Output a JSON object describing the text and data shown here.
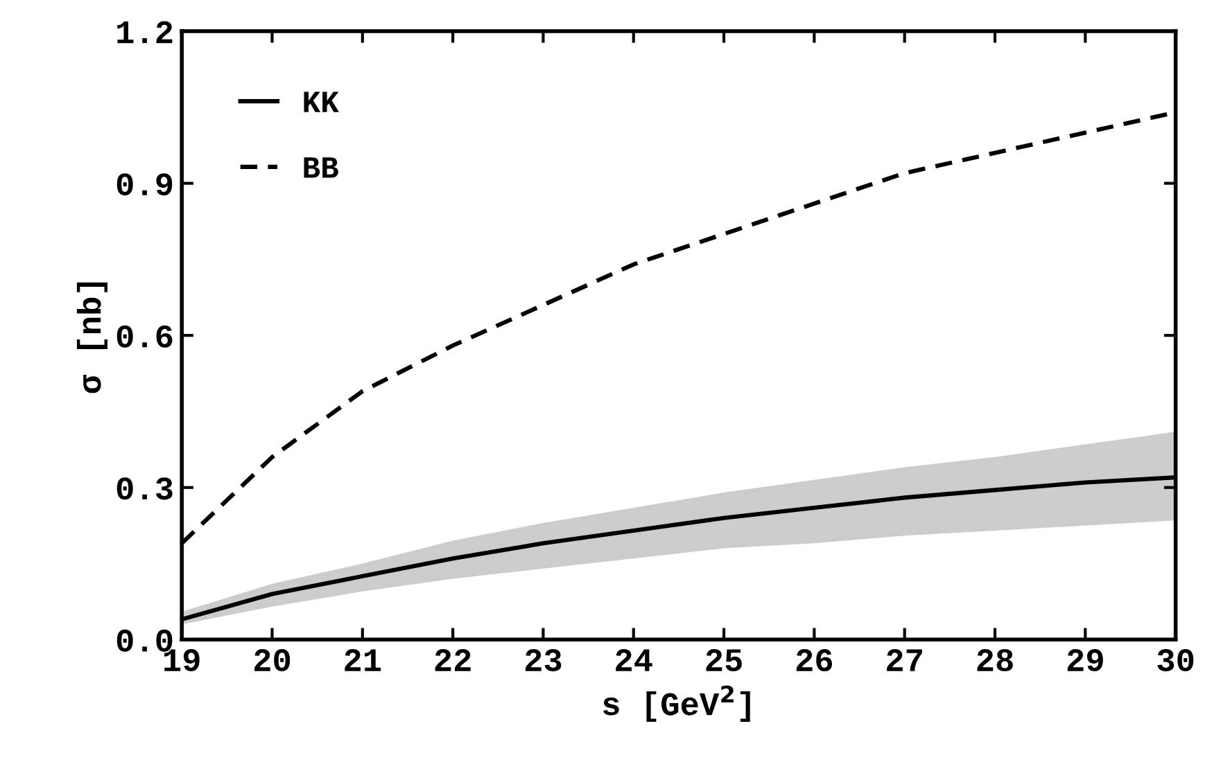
{
  "chart_data": {
    "type": "line",
    "xlabel": "s [GeV$^{2}$]",
    "ylabel": "σ [nb]",
    "x": [
      19,
      20,
      21,
      22,
      23,
      24,
      25,
      26,
      27,
      28,
      29,
      30
    ],
    "series": [
      {
        "name": "KK",
        "color": "#000000",
        "line_style": "solid",
        "values": [
          0.04,
          0.09,
          0.125,
          0.16,
          0.19,
          0.215,
          0.24,
          0.26,
          0.28,
          0.295,
          0.31,
          0.32
        ],
        "lower": [
          0.03,
          0.065,
          0.095,
          0.12,
          0.14,
          0.16,
          0.18,
          0.19,
          0.205,
          0.215,
          0.225,
          0.235
        ],
        "upper": [
          0.055,
          0.11,
          0.15,
          0.195,
          0.23,
          0.26,
          0.29,
          0.315,
          0.34,
          0.36,
          0.385,
          0.41
        ]
      },
      {
        "name": "BB",
        "color": "#000000",
        "line_style": "dashed",
        "values": [
          0.19,
          0.36,
          0.49,
          0.58,
          0.66,
          0.74,
          0.8,
          0.86,
          0.92,
          0.96,
          1.0,
          1.04
        ]
      }
    ],
    "xlim": [
      19,
      30
    ],
    "ylim": [
      0,
      1.2
    ],
    "xticks": [
      19,
      20,
      21,
      22,
      23,
      24,
      25,
      26,
      27,
      28,
      29,
      30
    ],
    "yticks": [
      {
        "value": 0,
        "label": "0.0"
      },
      {
        "value": 0.3,
        "label": "0.3"
      },
      {
        "value": 0.6,
        "label": "0.6"
      },
      {
        "value": 0.9,
        "label": "0.9"
      },
      {
        "value": 1.2,
        "label": "1.2"
      }
    ],
    "legend": "top left",
    "grid": false
  }
}
